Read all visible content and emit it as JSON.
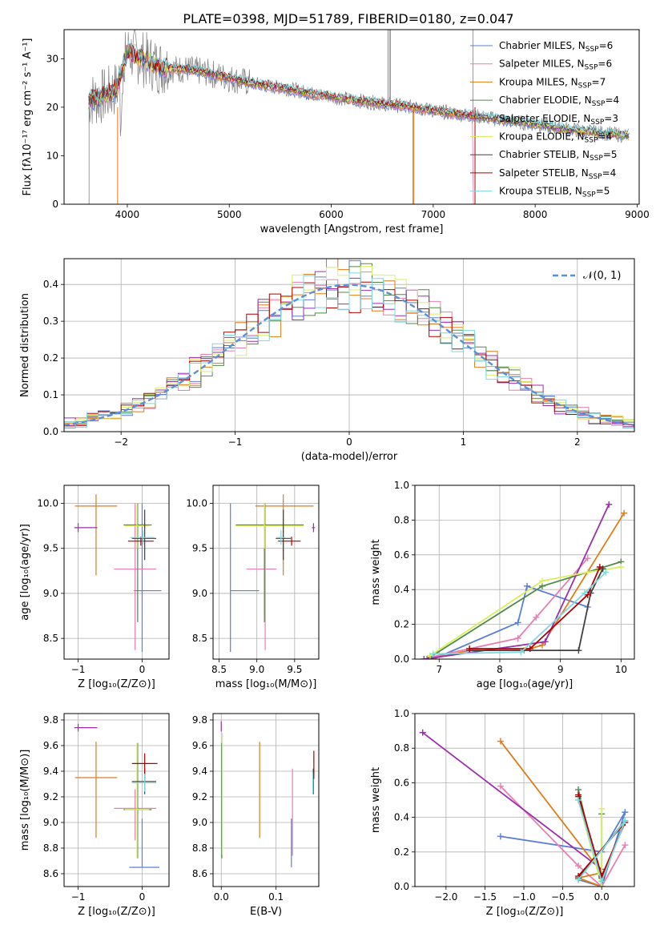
{
  "figure_title": "PLATE=0398, MJD=51789, FIBERID=0180, z=0.047",
  "colors": {
    "chabrier_miles": "#5b7fd6",
    "salpeter_miles": "#e87fb0",
    "kroupa_miles": "#e07b19",
    "chabrier_elodie": "#4f8a48",
    "salpeter_elodie": "#9b2fae",
    "kroupa_elodie": "#d8ef60",
    "chabrier_stelib": "#404040",
    "salpeter_stelib": "#b30000",
    "kroupa_stelib": "#7fd8e0",
    "data_gray": "#808080",
    "normal_curve": "#5b8fd6"
  },
  "chart_data": [
    {
      "id": "spectrum",
      "type": "line",
      "xlabel": "wavelength [Angstrom, rest frame]",
      "ylabel": "Flux [fλ10⁻¹⁷ erg cm⁻² s⁻¹ A⁻¹]",
      "xlim": [
        3380,
        9020
      ],
      "ylim": [
        0,
        36
      ],
      "xticks": [
        4000,
        5000,
        6000,
        7000,
        8000,
        9000
      ],
      "yticks": [
        0,
        10,
        20,
        30
      ],
      "legend_position": "top-right",
      "continuum": {
        "x": [
          3620,
          3700,
          3800,
          3900,
          4000,
          4100,
          4200,
          4300,
          4400,
          4600,
          4800,
          5000,
          5200,
          5400,
          5600,
          5800,
          6000,
          6200,
          6400,
          6600,
          6800,
          7000,
          7200,
          7400,
          7600,
          7800,
          8000,
          8200,
          8400,
          8600,
          8800,
          8920
        ],
        "y": [
          21.5,
          21.8,
          22.5,
          24,
          31.5,
          30.5,
          29.5,
          28.5,
          28,
          27.8,
          27,
          26,
          25,
          24.3,
          23.7,
          22.8,
          22.2,
          21.5,
          21,
          20.5,
          20,
          19.3,
          18.7,
          18.2,
          17.6,
          17,
          16.5,
          15.8,
          15.3,
          14.8,
          14.4,
          14.1
        ]
      },
      "series": [
        {
          "name": "Chabrier MILES, N",
          "sub": "SSP",
          "suffix": "=6",
          "color_key": "chabrier_miles"
        },
        {
          "name": "Salpeter MILES, N",
          "sub": "SSP",
          "suffix": "=6",
          "color_key": "salpeter_miles"
        },
        {
          "name": "Kroupa MILES, N",
          "sub": "SSP",
          "suffix": "=7",
          "color_key": "kroupa_miles"
        },
        {
          "name": "Chabrier ELODIE, N",
          "sub": "SSP",
          "suffix": "=4",
          "color_key": "chabrier_elodie"
        },
        {
          "name": "Salpeter ELODIE, N",
          "sub": "SSP",
          "suffix": "=3",
          "color_key": "salpeter_elodie"
        },
        {
          "name": "Kroupa ELODIE, N",
          "sub": "SSP",
          "suffix": "=4",
          "color_key": "kroupa_elodie"
        },
        {
          "name": "Chabrier STELIB, N",
          "sub": "SSP",
          "suffix": "=5",
          "color_key": "chabrier_stelib"
        },
        {
          "name": "Salpeter STELIB, N",
          "sub": "SSP",
          "suffix": "=4",
          "color_key": "salpeter_stelib"
        },
        {
          "name": "Kroupa STELIB, N",
          "sub": "SSP",
          "suffix": "=5",
          "color_key": "kroupa_stelib"
        }
      ]
    },
    {
      "id": "residuals",
      "type": "line",
      "xlabel": "(data-model)/error",
      "ylabel": "Normed distribution",
      "xlim": [
        -2.5,
        2.5
      ],
      "ylim": [
        0,
        0.47
      ],
      "xticks": [
        -2,
        -1,
        0,
        1,
        2
      ],
      "yticks": [
        0.0,
        0.1,
        0.2,
        0.3,
        0.4
      ],
      "grid": true,
      "legend_position": "top-right",
      "legend": "𝒩(0, 1)",
      "normal": {
        "mean": 0,
        "sigma": 1
      }
    },
    {
      "id": "age_vs_z",
      "type": "scatter",
      "xlabel": "Z [log₁₀(Z/Z⊙)]",
      "ylabel": "age  [log₁₀(age/yr)]",
      "xlim": [
        -1.22,
        0.42
      ],
      "ylim": [
        8.27,
        10.2
      ],
      "xticks": [
        -1,
        0
      ],
      "yticks": [
        8.5,
        9.0,
        9.5,
        10.0
      ],
      "grid": true,
      "points": [
        {
          "c": "chabrier_miles",
          "x": 0.0,
          "y": 9.03,
          "xerr": [
            0.13,
            0.3
          ],
          "yerr": [
            0.68,
            0.97
          ]
        },
        {
          "c": "salpeter_miles",
          "x": -0.11,
          "y": 9.27,
          "xerr": [
            0.33,
            0.33
          ],
          "yerr": [
            0.9,
            0.73
          ]
        },
        {
          "c": "kroupa_miles",
          "x": -0.72,
          "y": 9.97,
          "xerr": [
            0.33,
            0.33
          ],
          "yerr": [
            0.77,
            0.13
          ]
        },
        {
          "c": "chabrier_elodie",
          "x": -0.07,
          "y": 9.76,
          "xerr": [
            0.22,
            0.22
          ],
          "yerr": [
            1.08,
            0.24
          ]
        },
        {
          "c": "salpeter_elodie",
          "x": -1.0,
          "y": 9.73,
          "xerr": [
            0.06,
            0.3
          ],
          "yerr": [
            0.05,
            0.05
          ]
        },
        {
          "c": "kroupa_elodie",
          "x": -0.08,
          "y": 9.75,
          "xerr": [
            0.19,
            0.19
          ],
          "yerr": [
            0.25,
            0.25
          ]
        },
        {
          "c": "chabrier_stelib",
          "x": 0.04,
          "y": 9.61,
          "xerr": [
            0.2,
            0.18
          ],
          "yerr": [
            0.24,
            0.32
          ]
        },
        {
          "c": "salpeter_stelib",
          "x": -0.02,
          "y": 9.58,
          "xerr": [
            0.2,
            0.2
          ],
          "yerr": [
            0.05,
            0.05
          ]
        },
        {
          "c": "kroupa_stelib",
          "x": 0.01,
          "y": 9.62,
          "xerr": [
            0.2,
            0.18
          ],
          "yerr": [
            0.08,
            0.08
          ]
        }
      ]
    },
    {
      "id": "age_vs_mass",
      "type": "scatter",
      "xlabel": "mass [log₁₀(M/M⊙)]",
      "ylabel": "",
      "xlim": [
        8.42,
        9.82
      ],
      "ylim": [
        8.27,
        10.2
      ],
      "xticks": [
        8.5,
        9.0,
        9.5
      ],
      "yticks": [
        8.5,
        9.0,
        9.5,
        10.0
      ],
      "grid": true,
      "points": [
        {
          "c": "chabrier_miles",
          "x": 8.65,
          "y": 9.03,
          "xerr": [
            0.0,
            0.38
          ],
          "yerr": [
            0.68,
            0.97
          ]
        },
        {
          "c": "salpeter_miles",
          "x": 9.11,
          "y": 9.27,
          "xerr": [
            0.25,
            0.15
          ],
          "yerr": [
            0.9,
            0.73
          ]
        },
        {
          "c": "kroupa_miles",
          "x": 9.35,
          "y": 9.97,
          "xerr": [
            0.37,
            0.4
          ],
          "yerr": [
            0.77,
            0.13
          ]
        },
        {
          "c": "chabrier_elodie",
          "x": 9.1,
          "y": 9.76,
          "xerr": [
            0.38,
            0.52
          ],
          "yerr": [
            1.08,
            0.24
          ]
        },
        {
          "c": "salpeter_elodie",
          "x": 9.75,
          "y": 9.73,
          "xerr": [
            0.02,
            0.02
          ],
          "yerr": [
            0.05,
            0.05
          ]
        },
        {
          "c": "kroupa_elodie",
          "x": 9.1,
          "y": 9.75,
          "xerr": [
            0.38,
            0.52
          ],
          "yerr": [
            0.25,
            0.25
          ]
        },
        {
          "c": "chabrier_stelib",
          "x": 9.35,
          "y": 9.61,
          "xerr": [
            0.1,
            0.1
          ],
          "yerr": [
            0.24,
            0.32
          ]
        },
        {
          "c": "salpeter_stelib",
          "x": 9.46,
          "y": 9.58,
          "xerr": [
            0.18,
            0.12
          ],
          "yerr": [
            0.05,
            0.05
          ]
        },
        {
          "c": "kroupa_stelib",
          "x": 9.32,
          "y": 9.62,
          "xerr": [
            0.06,
            0.06
          ],
          "yerr": [
            0.08,
            0.08
          ]
        }
      ]
    },
    {
      "id": "weight_vs_age",
      "type": "line",
      "xlabel": "age  [log₁₀(age/yr)]",
      "ylabel": "mass weight",
      "xlim": [
        6.6,
        10.22
      ],
      "ylim": [
        0,
        1.0
      ],
      "xticks": [
        7,
        8,
        9,
        10
      ],
      "yticks": [
        0.0,
        0.2,
        0.4,
        0.6,
        0.8,
        1.0
      ],
      "grid": true,
      "series": [
        {
          "c": "chabrier_miles",
          "x": [
            6.9,
            8.3,
            8.45,
            9.45
          ],
          "y": [
            0.0,
            0.21,
            0.42,
            0.3
          ]
        },
        {
          "c": "salpeter_miles",
          "x": [
            6.85,
            8.3,
            8.6,
            9.45
          ],
          "y": [
            0.01,
            0.12,
            0.24,
            0.58
          ]
        },
        {
          "c": "kroupa_miles",
          "x": [
            6.85,
            7.5,
            8.4,
            8.7,
            10.05
          ],
          "y": [
            0.0,
            0.05,
            0.05,
            0.08,
            0.84
          ]
        },
        {
          "c": "chabrier_elodie",
          "x": [
            6.8,
            8.7,
            10.0
          ],
          "y": [
            0.0,
            0.42,
            0.56
          ]
        },
        {
          "c": "salpeter_elodie",
          "x": [
            6.75,
            8.75,
            9.8
          ],
          "y": [
            0.0,
            0.1,
            0.89
          ]
        },
        {
          "c": "kroupa_elodie",
          "x": [
            6.85,
            8.7,
            9.45,
            10.0
          ],
          "y": [
            0.02,
            0.45,
            0.5,
            0.53
          ]
        },
        {
          "c": "chabrier_stelib",
          "x": [
            7.5,
            9.3,
            9.5,
            9.7
          ],
          "y": [
            0.05,
            0.05,
            0.38,
            0.52
          ]
        },
        {
          "c": "salpeter_stelib",
          "x": [
            7.5,
            8.5,
            9.45,
            9.65
          ],
          "y": [
            0.06,
            0.06,
            0.37,
            0.53
          ]
        },
        {
          "c": "kroupa_stelib",
          "x": [
            6.9,
            8.35,
            9.4,
            9.75
          ],
          "y": [
            0.03,
            0.04,
            0.38,
            0.5
          ]
        }
      ]
    },
    {
      "id": "mass_vs_z",
      "type": "scatter",
      "xlabel": "Z [log₁₀(Z/Z⊙)]",
      "ylabel": "mass [log₁₀(M/M⊙)]",
      "xlim": [
        -1.22,
        0.42
      ],
      "ylim": [
        8.5,
        9.85
      ],
      "xticks": [
        -1,
        0
      ],
      "yticks": [
        8.6,
        8.8,
        9.0,
        9.2,
        9.4,
        9.6,
        9.8
      ],
      "grid": true,
      "points": [
        {
          "c": "chabrier_miles",
          "x": 0.0,
          "y": 8.65,
          "xerr": [
            0.2,
            0.27
          ],
          "yerr": [
            0.0,
            0.38
          ]
        },
        {
          "c": "salpeter_miles",
          "x": -0.11,
          "y": 9.11,
          "xerr": [
            0.33,
            0.33
          ],
          "yerr": [
            0.25,
            0.15
          ]
        },
        {
          "c": "kroupa_miles",
          "x": -0.72,
          "y": 9.35,
          "xerr": [
            0.33,
            0.33
          ],
          "yerr": [
            0.47,
            0.28
          ]
        },
        {
          "c": "chabrier_elodie",
          "x": -0.07,
          "y": 9.1,
          "xerr": [
            0.22,
            0.22
          ],
          "yerr": [
            0.38,
            0.52
          ]
        },
        {
          "c": "salpeter_elodie",
          "x": -1.0,
          "y": 9.74,
          "xerr": [
            0.06,
            0.3
          ],
          "yerr": [
            0.03,
            0.03
          ]
        },
        {
          "c": "kroupa_elodie",
          "x": -0.08,
          "y": 9.1,
          "xerr": [
            0.19,
            0.19
          ],
          "yerr": [
            0.38,
            0.52
          ]
        },
        {
          "c": "chabrier_stelib",
          "x": 0.04,
          "y": 9.32,
          "xerr": [
            0.2,
            0.18
          ],
          "yerr": [
            0.1,
            0.1
          ]
        },
        {
          "c": "salpeter_stelib",
          "x": 0.04,
          "y": 9.46,
          "xerr": [
            0.2,
            0.2
          ],
          "yerr": [
            0.12,
            0.08
          ]
        },
        {
          "c": "kroupa_stelib",
          "x": 0.04,
          "y": 9.31,
          "xerr": [
            0.2,
            0.18
          ],
          "yerr": [
            0.07,
            0.07
          ]
        }
      ]
    },
    {
      "id": "mass_vs_ebv",
      "type": "scatter",
      "xlabel": "E(B-V)",
      "ylabel": "",
      "xlim": [
        -0.015,
        0.178
      ],
      "ylim": [
        8.5,
        9.85
      ],
      "xticks": [
        0.0,
        0.1
      ],
      "yticks": [
        8.6,
        8.8,
        9.0,
        9.2,
        9.4,
        9.6,
        9.8
      ],
      "grid": true,
      "points": [
        {
          "c": "chabrier_miles",
          "x": 0.128,
          "y": 8.65,
          "xerr": [
            0,
            0
          ],
          "yerr": [
            0.0,
            0.38
          ]
        },
        {
          "c": "salpeter_miles",
          "x": 0.13,
          "y": 9.11,
          "xerr": [
            0,
            0
          ],
          "yerr": [
            0.37,
            0.31
          ]
        },
        {
          "c": "kroupa_miles",
          "x": 0.07,
          "y": 9.35,
          "xerr": [
            0,
            0
          ],
          "yerr": [
            0.47,
            0.28
          ]
        },
        {
          "c": "chabrier_elodie",
          "x": 0.001,
          "y": 9.1,
          "xerr": [
            0,
            0
          ],
          "yerr": [
            0.38,
            0.52
          ]
        },
        {
          "c": "salpeter_elodie",
          "x": 0.0,
          "y": 9.74,
          "xerr": [
            0,
            0
          ],
          "yerr": [
            0.03,
            0.05
          ]
        },
        {
          "c": "kroupa_elodie",
          "x": 0.002,
          "y": 9.1,
          "xerr": [
            0,
            0
          ],
          "yerr": [
            0.35,
            0.6
          ]
        },
        {
          "c": "chabrier_stelib",
          "x": 0.168,
          "y": 9.32,
          "xerr": [
            0,
            0
          ],
          "yerr": [
            0.1,
            0.1
          ]
        },
        {
          "c": "salpeter_stelib",
          "x": 0.169,
          "y": 9.46,
          "xerr": [
            0,
            0
          ],
          "yerr": [
            0.12,
            0.1
          ]
        },
        {
          "c": "kroupa_stelib",
          "x": 0.167,
          "y": 9.31,
          "xerr": [
            0,
            0
          ],
          "yerr": [
            0.08,
            0.08
          ]
        }
      ]
    },
    {
      "id": "weight_vs_z",
      "type": "line",
      "xlabel": "Z [log₁₀(Z/Z⊙)]",
      "ylabel": "mass weight",
      "xlim": [
        -2.4,
        0.42
      ],
      "ylim": [
        0,
        1.0
      ],
      "xticks": [
        -2.0,
        -1.5,
        -1.0,
        -0.5,
        0.0
      ],
      "yticks": [
        0.0,
        0.2,
        0.4,
        0.6,
        0.8,
        1.0
      ],
      "grid": true,
      "series": [
        {
          "c": "chabrier_miles",
          "x": [
            -1.3,
            0.0,
            0.3,
            0.0,
            -0.3
          ],
          "y": [
            0.29,
            0.2,
            0.43,
            0.0,
            0.04
          ]
        },
        {
          "c": "salpeter_miles",
          "x": [
            -1.3,
            -0.3,
            0.0,
            0.3,
            0.0
          ],
          "y": [
            0.58,
            0.12,
            0.0,
            0.24,
            0.0
          ]
        },
        {
          "c": "kroupa_miles",
          "x": [
            -1.3,
            0.0,
            -0.3,
            0.0,
            0.0
          ],
          "y": [
            0.84,
            0.08,
            0.05,
            0.0,
            0.05
          ]
        },
        {
          "c": "chabrier_elodie",
          "x": [
            -0.3,
            0.0,
            0.0
          ],
          "y": [
            0.56,
            0.0,
            0.42
          ]
        },
        {
          "c": "salpeter_elodie",
          "x": [
            -2.3,
            0.0,
            0.0
          ],
          "y": [
            0.89,
            0.1,
            0.0
          ]
        },
        {
          "c": "kroupa_elodie",
          "x": [
            -0.3,
            0.0,
            0.0
          ],
          "y": [
            0.5,
            0.0,
            0.45
          ]
        },
        {
          "c": "chabrier_stelib",
          "x": [
            -0.3,
            0.0,
            0.3,
            -0.3
          ],
          "y": [
            0.52,
            0.05,
            0.38,
            0.05
          ]
        },
        {
          "c": "salpeter_stelib",
          "x": [
            -0.3,
            0.0,
            0.3,
            -0.3
          ],
          "y": [
            0.53,
            0.06,
            0.37,
            0.06
          ]
        },
        {
          "c": "kroupa_stelib",
          "x": [
            -0.3,
            0.0,
            0.3,
            -0.3
          ],
          "y": [
            0.5,
            0.03,
            0.38,
            0.04
          ]
        }
      ]
    }
  ]
}
